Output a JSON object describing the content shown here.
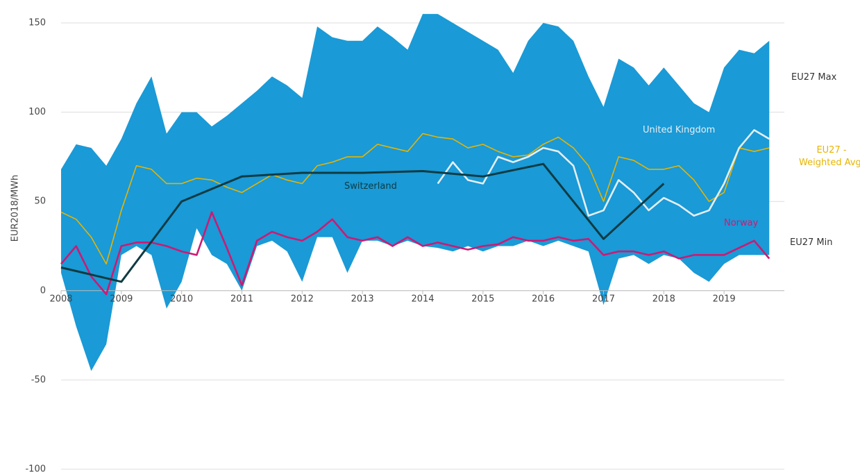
{
  "chart_data": {
    "type": "line",
    "y_label": "EUR2018/MWh",
    "xlim": [
      2008,
      2020
    ],
    "xticks": [
      2008,
      2009,
      2010,
      2011,
      2012,
      2013,
      2014,
      2015,
      2016,
      2017,
      2018,
      2019
    ],
    "ylim": [
      -100,
      150
    ],
    "yticks": [
      -100,
      -50,
      0,
      50,
      100,
      150
    ],
    "grid": true,
    "band": {
      "upper": "EU27 Max",
      "lower": "EU27 Min",
      "color": "#1a9ad6",
      "x": [
        2008,
        2008.25,
        2008.5,
        2008.75,
        2009,
        2009.25,
        2009.5,
        2009.75,
        2010,
        2010.25,
        2010.5,
        2010.75,
        2011,
        2011.25,
        2011.5,
        2011.75,
        2012,
        2012.25,
        2012.5,
        2012.75,
        2013,
        2013.25,
        2013.5,
        2013.75,
        2014,
        2014.25,
        2014.5,
        2014.75,
        2015,
        2015.25,
        2015.5,
        2015.75,
        2016,
        2016.25,
        2016.5,
        2016.75,
        2017,
        2017.25,
        2017.5,
        2017.75,
        2018,
        2018.25,
        2018.5,
        2018.75,
        2019,
        2019.25,
        2019.5,
        2019.75
      ],
      "upper_values": [
        68,
        82,
        80,
        70,
        85,
        105,
        120,
        88,
        100,
        100,
        92,
        98,
        105,
        112,
        120,
        115,
        108,
        148,
        142,
        140,
        140,
        148,
        142,
        135,
        155,
        155,
        150,
        145,
        140,
        135,
        122,
        140,
        150,
        148,
        140,
        120,
        103,
        130,
        125,
        115,
        125,
        115,
        105,
        100,
        125,
        135,
        133,
        140
      ],
      "lower_values": [
        10,
        -20,
        -45,
        -30,
        20,
        25,
        20,
        -10,
        5,
        35,
        20,
        15,
        0,
        25,
        28,
        22,
        5,
        30,
        30,
        10,
        28,
        28,
        25,
        28,
        25,
        24,
        22,
        25,
        22,
        25,
        25,
        28,
        25,
        28,
        25,
        22,
        -8,
        18,
        20,
        15,
        20,
        18,
        10,
        5,
        15,
        20,
        20,
        20
      ]
    },
    "series": [
      {
        "name": "EU27 - Weighted Avg.",
        "color": "#e8b400",
        "x": [
          2008,
          2008.25,
          2008.5,
          2008.75,
          2009,
          2009.25,
          2009.5,
          2009.75,
          2010,
          2010.25,
          2010.5,
          2010.75,
          2011,
          2011.25,
          2011.5,
          2011.75,
          2012,
          2012.25,
          2012.5,
          2012.75,
          2013,
          2013.25,
          2013.5,
          2013.75,
          2014,
          2014.25,
          2014.5,
          2014.75,
          2015,
          2015.25,
          2015.5,
          2015.75,
          2016,
          2016.25,
          2016.5,
          2016.75,
          2017,
          2017.25,
          2017.5,
          2017.75,
          2018,
          2018.25,
          2018.5,
          2018.75,
          2019,
          2019.25,
          2019.5,
          2019.75
        ],
        "values": [
          44,
          40,
          30,
          15,
          45,
          70,
          68,
          60,
          60,
          63,
          62,
          58,
          55,
          60,
          65,
          62,
          60,
          70,
          72,
          75,
          75,
          82,
          80,
          78,
          88,
          86,
          85,
          80,
          82,
          78,
          75,
          76,
          82,
          86,
          80,
          70,
          50,
          75,
          73,
          68,
          68,
          70,
          62,
          50,
          55,
          80,
          78,
          80
        ]
      },
      {
        "name": "United Kingdom",
        "color": "#e6eef3",
        "x": [
          2014.25,
          2014.5,
          2014.75,
          2015,
          2015.25,
          2015.5,
          2015.75,
          2016,
          2016.25,
          2016.5,
          2016.75,
          2017,
          2017.25,
          2017.5,
          2017.75,
          2018,
          2018.25,
          2018.5,
          2018.75,
          2019,
          2019.25,
          2019.5,
          2019.75
        ],
        "values": [
          60,
          72,
          62,
          60,
          75,
          72,
          75,
          80,
          78,
          70,
          42,
          45,
          62,
          55,
          45,
          52,
          48,
          42,
          45,
          60,
          80,
          90,
          85
        ]
      },
      {
        "name": "Switzerland",
        "color": "#0e3b43",
        "x": [
          2008,
          2009,
          2010,
          2011,
          2012,
          2013,
          2014,
          2015,
          2016,
          2017,
          2018
        ],
        "values": [
          13,
          5,
          50,
          64,
          66,
          66,
          67,
          64,
          71,
          29,
          60
        ]
      },
      {
        "name": "Norway",
        "color": "#cc1a73",
        "x": [
          2008,
          2008.25,
          2008.5,
          2008.75,
          2009,
          2009.25,
          2009.5,
          2009.75,
          2010,
          2010.25,
          2010.5,
          2010.75,
          2011,
          2011.25,
          2011.5,
          2011.75,
          2012,
          2012.25,
          2012.5,
          2012.75,
          2013,
          2013.25,
          2013.5,
          2013.75,
          2014,
          2014.25,
          2014.5,
          2014.75,
          2015,
          2015.25,
          2015.5,
          2015.75,
          2016,
          2016.25,
          2016.5,
          2016.75,
          2017,
          2017.25,
          2017.5,
          2017.75,
          2018,
          2018.25,
          2018.5,
          2018.75,
          2019,
          2019.25,
          2019.5,
          2019.75
        ],
        "values": [
          15,
          25,
          8,
          -2,
          25,
          27,
          27,
          25,
          22,
          20,
          44,
          24,
          3,
          28,
          33,
          30,
          28,
          33,
          40,
          30,
          28,
          30,
          25,
          30,
          25,
          27,
          25,
          23,
          25,
          26,
          30,
          28,
          28,
          30,
          28,
          29,
          20,
          22,
          22,
          20,
          22,
          18,
          20,
          20,
          20,
          24,
          28,
          18
        ]
      }
    ]
  }
}
